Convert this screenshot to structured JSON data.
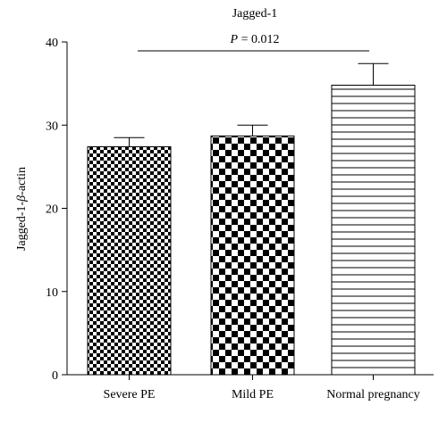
{
  "chart_data": {
    "type": "bar",
    "title": "Jagged-1",
    "annotation_prefix": "P",
    "annotation_value": " = 0.012",
    "ylabel_pre": "Jagged-1-",
    "ylabel_beta": "β",
    "ylabel_post": "-actin",
    "xlabel": "",
    "ylim": [
      0,
      40
    ],
    "yticks": [
      0,
      10,
      20,
      30,
      40
    ],
    "categories": [
      "Severe PE",
      "Mild PE",
      "Normal pregnancy"
    ],
    "values": [
      27.4,
      28.7,
      34.8
    ],
    "errors": [
      1.1,
      1.3,
      2.6
    ],
    "patterns": [
      "fine-checker",
      "coarse-checker",
      "horizontal-stripes"
    ],
    "significance_bracket": {
      "from": "Severe PE",
      "to": "Normal pregnancy"
    },
    "grid": false,
    "colors": {
      "bar_fill": "#000000",
      "background": "#ffffff",
      "axis": "#000000"
    }
  }
}
